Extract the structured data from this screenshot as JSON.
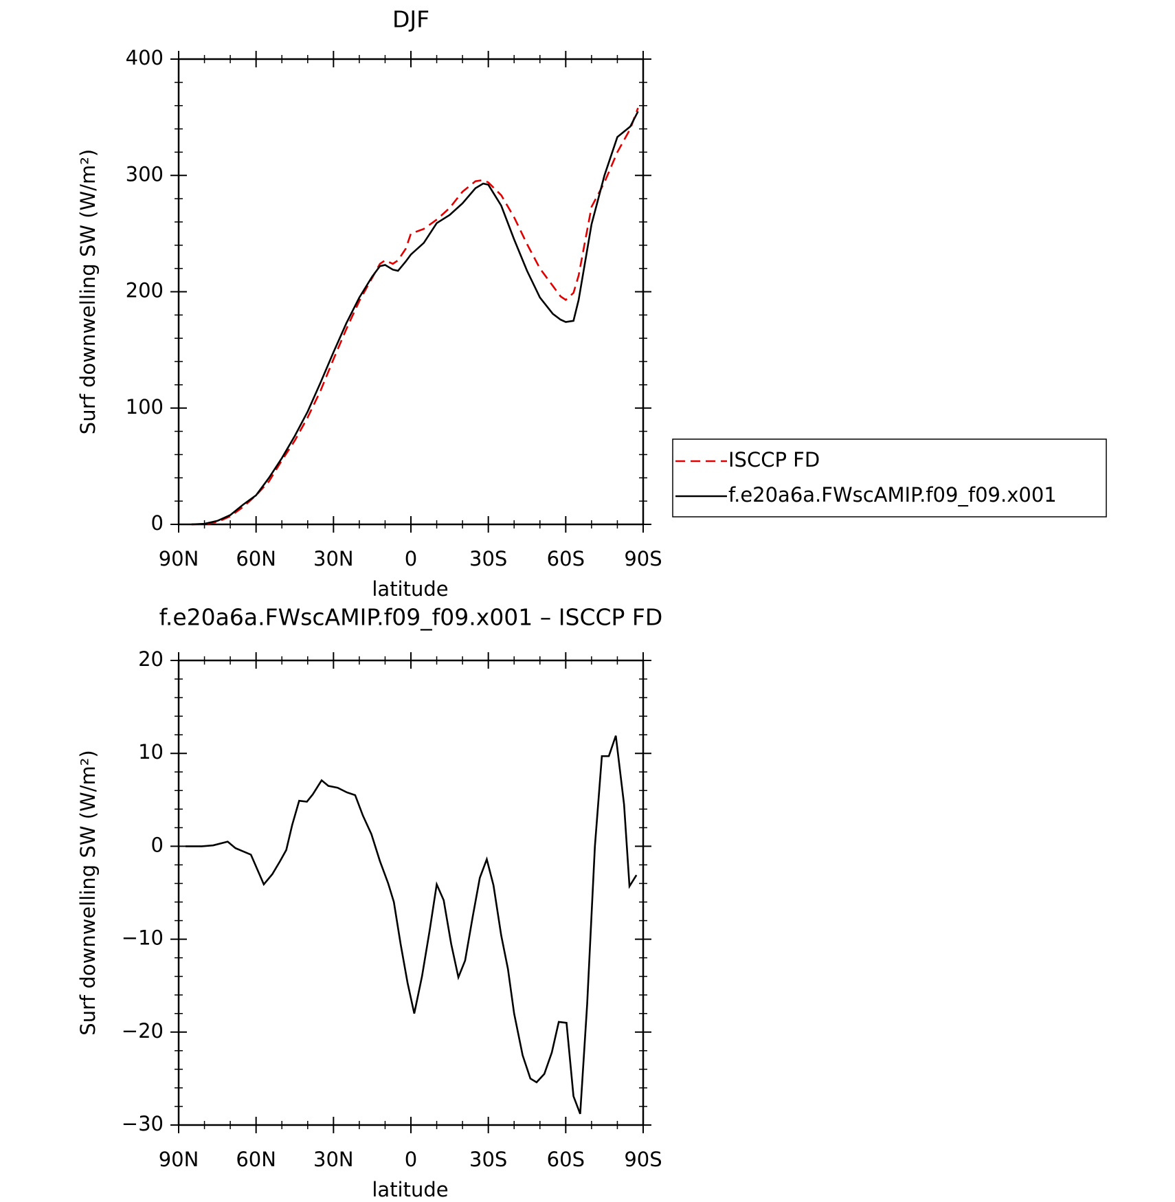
{
  "chart_data": [
    {
      "type": "line",
      "title": "DJF",
      "xlabel": "latitude",
      "ylabel": "Surf downwelling SW (W/m²)",
      "xlim": [
        90,
        -90
      ],
      "ylim": [
        0,
        400
      ],
      "xticks": [
        {
          "value": 90,
          "label": "90N"
        },
        {
          "value": 60,
          "label": "60N"
        },
        {
          "value": 30,
          "label": "30N"
        },
        0,
        {
          "value": -30,
          "label": "30S"
        },
        {
          "value": -60,
          "label": "60S"
        },
        {
          "value": -90,
          "label": "90S"
        }
      ],
      "yticks": [
        0,
        100,
        200,
        300,
        400
      ],
      "x": [
        85,
        80,
        75,
        70,
        65,
        60,
        55,
        50,
        45,
        40,
        35,
        30,
        25,
        20,
        15,
        12,
        10,
        7,
        5,
        2,
        0,
        -5,
        -10,
        -15,
        -20,
        -25,
        -28,
        -30,
        -35,
        -40,
        -45,
        -50,
        -55,
        -58,
        -60,
        -63,
        -65,
        -70,
        -75,
        -80,
        -85,
        -88
      ],
      "series": [
        {
          "name": "ISCCP FD",
          "color": "#e00000",
          "dashed": true,
          "values": [
            0,
            0.3,
            2,
            7,
            15,
            25,
            37,
            55,
            72,
            92,
            115,
            142,
            168,
            192,
            212,
            224,
            227,
            224,
            227,
            237,
            250,
            254,
            262,
            272,
            286,
            295,
            296,
            294,
            283,
            264,
            241,
            220,
            205,
            196,
            193,
            199,
            214,
            273,
            294,
            320,
            340,
            358
          ]
        },
        {
          "name": "f.e20a6a.FWscAMIP.f09_f09.x001",
          "color": "#000000",
          "dashed": false,
          "values": [
            0,
            0.5,
            3,
            8,
            17,
            25,
            40,
            57,
            76,
            97,
            122,
            148,
            173,
            195,
            213,
            222,
            223,
            219,
            218,
            226,
            232,
            242,
            259,
            266,
            276,
            289,
            293,
            292,
            274,
            245,
            218,
            195,
            181,
            176,
            174,
            175,
            193,
            258,
            300,
            333,
            342,
            355
          ]
        }
      ]
    },
    {
      "type": "line",
      "title": "f.e20a6a.FWscAMIP.f09_f09.x001 – ISCCP FD",
      "xlabel": "latitude",
      "ylabel": "Surf downwelling SW (W/m²)",
      "xlim": [
        90,
        -90
      ],
      "ylim": [
        -30,
        20
      ],
      "xticks": [
        {
          "value": 90,
          "label": "90N"
        },
        {
          "value": 60,
          "label": "60N"
        },
        {
          "value": 30,
          "label": "30N"
        },
        0,
        {
          "value": -30,
          "label": "30S"
        },
        {
          "value": -60,
          "label": "60S"
        },
        {
          "value": -90,
          "label": "90S"
        }
      ],
      "yticks": [
        {
          "value": -30,
          "label": "−30"
        },
        {
          "value": -20,
          "label": "−20"
        },
        {
          "value": -10,
          "label": "−10"
        },
        0,
        10,
        20
      ],
      "x": [
        87.3,
        81,
        76.6,
        71,
        68,
        62,
        57,
        53.7,
        50.7,
        48.3,
        46,
        43.3,
        40.3,
        38,
        34.6,
        32,
        28.4,
        24.8,
        21.6,
        18.6,
        15.3,
        12,
        8.8,
        6.6,
        4,
        1.3,
        -1.3,
        -4.3,
        -7.3,
        -10,
        -12.7,
        -15.6,
        -18.4,
        -21,
        -24,
        -26.7,
        -29.4,
        -32,
        -35,
        -37.6,
        -40,
        -43.3,
        -46.3,
        -48.7,
        -51.7,
        -54.6,
        -57.3,
        -60.3,
        -63,
        -65.6,
        -68.3,
        -71.3,
        -74,
        -76.7,
        -79.4,
        -82.6,
        -84.7,
        -87.4
      ],
      "series": [
        {
          "color": "#000000",
          "dashed": false,
          "values": [
            0,
            0,
            0.1,
            0.5,
            -0.2,
            -0.9,
            -4.1,
            -3,
            -1.6,
            -0.4,
            2.3,
            4.9,
            4.8,
            5.6,
            7.1,
            6.5,
            6.3,
            5.8,
            5.5,
            3.3,
            1.3,
            -1.6,
            -4,
            -6,
            -10.5,
            -14.7,
            -18,
            -14,
            -9,
            -4.1,
            -5.8,
            -10.5,
            -14.1,
            -12.3,
            -7.5,
            -3.4,
            -1.4,
            -4.2,
            -9.6,
            -13.2,
            -18,
            -22.5,
            -25,
            -25.4,
            -24.5,
            -22.2,
            -18.9,
            -19,
            -26.9,
            -28.8,
            -17,
            0,
            9.7,
            9.7,
            11.9,
            4.5,
            -4.3,
            -3.1
          ]
        }
      ]
    }
  ]
}
